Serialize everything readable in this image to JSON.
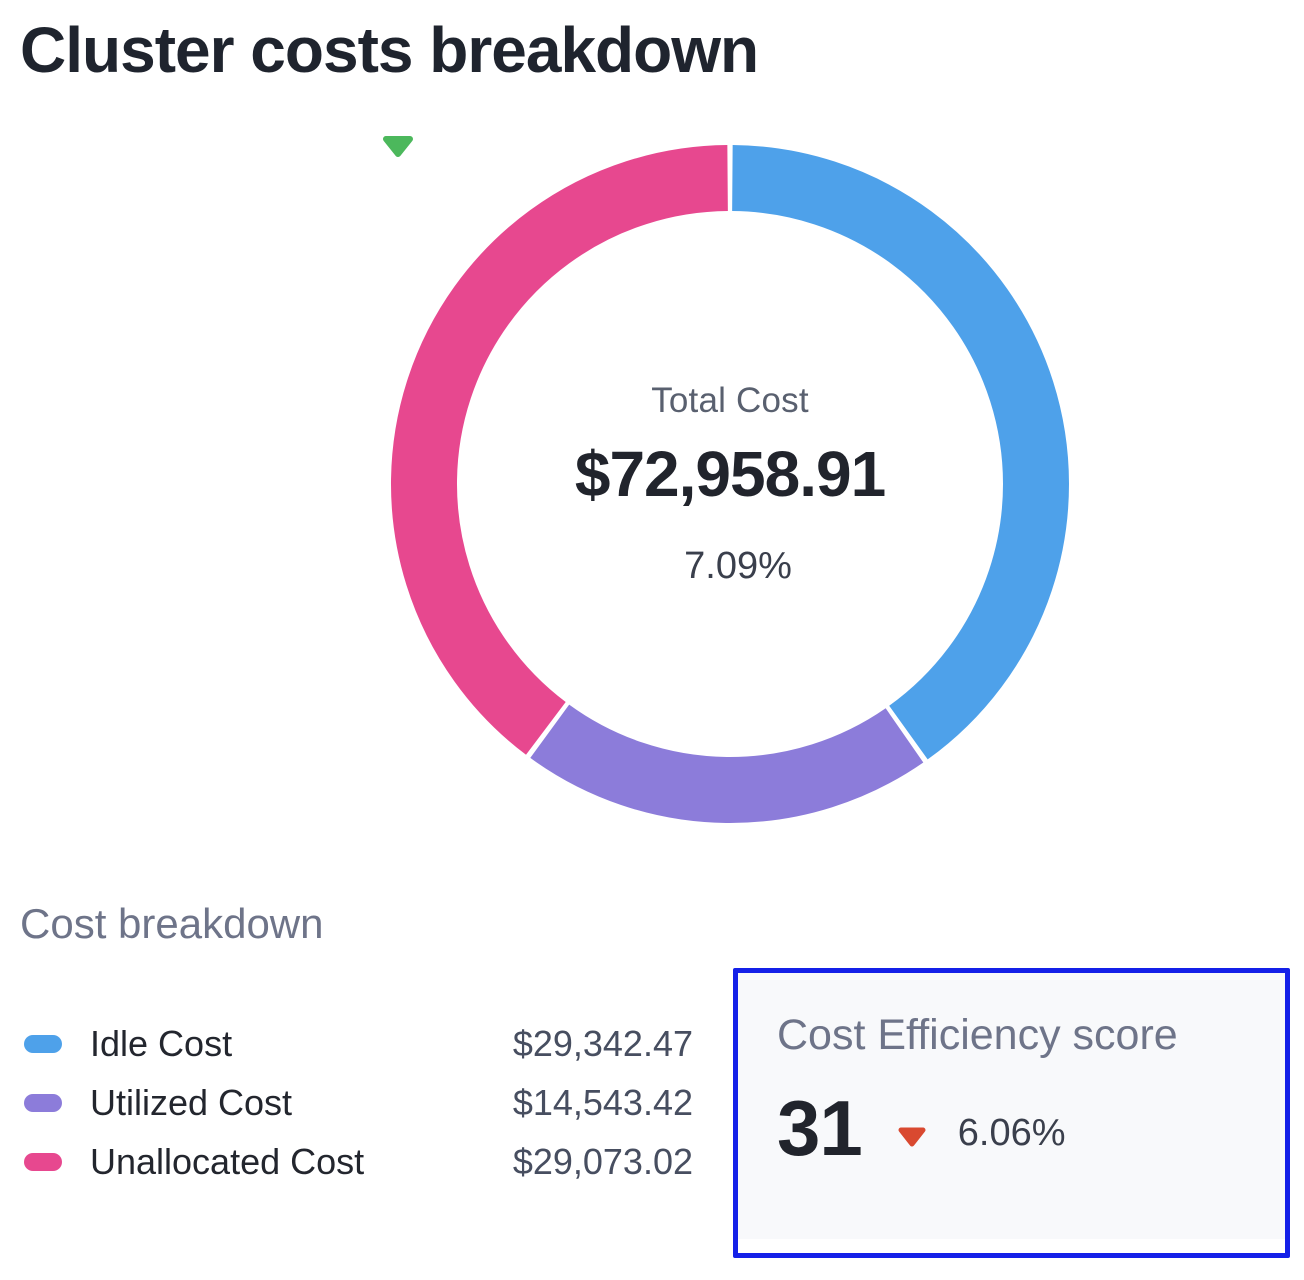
{
  "page": {
    "title": "Cluster costs breakdown"
  },
  "donut": {
    "center_label": "Total Cost",
    "total_value": "$72,958.91",
    "change": {
      "value": "7.09%",
      "direction": "down",
      "color": "#4cb85c"
    }
  },
  "breakdown": {
    "heading": "Cost breakdown",
    "items": [
      {
        "label": "Idle Cost",
        "value": "$29,342.47",
        "color": "#4ea1ea"
      },
      {
        "label": "Utilized Cost",
        "value": "$14,543.42",
        "color": "#8c7cda"
      },
      {
        "label": "Unallocated Cost",
        "value": "$29,073.02",
        "color": "#e7488f"
      }
    ]
  },
  "efficiency": {
    "heading": "Cost Efficiency score",
    "score": "31",
    "change": {
      "value": "6.06%",
      "direction": "down",
      "color": "#d94930"
    },
    "border_color": "#1420e8",
    "background": "#f8f9fb"
  },
  "chart_data": {
    "type": "pie",
    "donut": true,
    "title": "Cluster costs breakdown",
    "categories": [
      "Idle Cost",
      "Utilized Cost",
      "Unallocated Cost"
    ],
    "values": [
      29342.47,
      14543.42,
      29073.02
    ],
    "colors": [
      "#4ea1ea",
      "#8c7cda",
      "#e7488f"
    ],
    "total": 72958.91,
    "center_label": "Total Cost",
    "center_value": "$72,958.91",
    "change_pct": 7.09,
    "change_direction": "down",
    "start_angle_deg": 0,
    "legend_position": "bottom-left",
    "geometry": {
      "mid_radius": 306,
      "ring_width": 66,
      "pad_deg": 0.45
    }
  }
}
